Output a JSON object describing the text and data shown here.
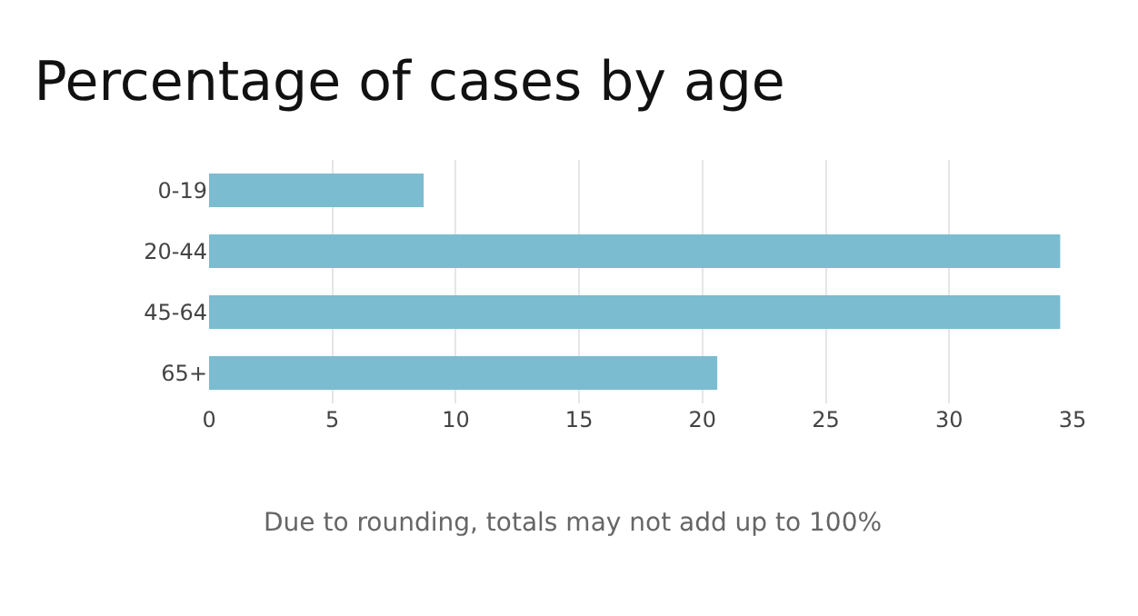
{
  "chart_data": {
    "type": "bar",
    "orientation": "horizontal",
    "title": "Percentage of cases by age",
    "categories": [
      "0-19",
      "20-44",
      "45-64",
      "65+"
    ],
    "values": [
      8.7,
      34.5,
      34.5,
      20.6
    ],
    "color": "#7bbcd0",
    "xlim": [
      0,
      35
    ],
    "xticks": [
      0,
      5,
      10,
      15,
      20,
      25,
      30,
      35
    ],
    "grid": "x",
    "annotations": [
      "Due to rounding, totals may not add up to 100%"
    ]
  }
}
